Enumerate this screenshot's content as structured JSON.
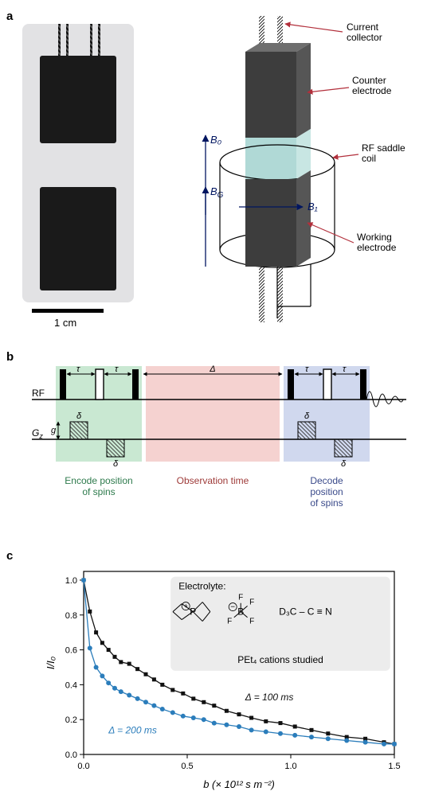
{
  "panel_a": {
    "label": "a",
    "scale_text": "1 cm",
    "callouts": {
      "current_collector": "Current\ncollector",
      "counter_electrode": "Counter\nelectrode",
      "rf_coil": "RF saddle\ncoil",
      "working_electrode": "Working\nelectrode"
    },
    "fields": {
      "B0": "B₀",
      "BG": "B_G",
      "B1": "B₁"
    },
    "colors": {
      "electrode_photo": "#1a1a1a",
      "photo_bg": "#e2e2e4",
      "counter_electrode": "#3f3f3f",
      "working_electrode": "#3f3f3f",
      "electrolyte": "#b0d9d6",
      "arrow_red": "#b22f3b",
      "field_blue": "#001560"
    }
  },
  "panel_b": {
    "label": "b",
    "rf_label": "RF",
    "gz_label": "G_z",
    "g_label": "g",
    "tau": "τ",
    "delta_small": "δ",
    "delta_big": "Δ",
    "phase_labels": {
      "encode": "Encode position\nof spins",
      "observe": "Observation time",
      "decode": "Decode\nposition\nof spins"
    },
    "colors": {
      "encode_bg": "#c9e8d2",
      "observe_bg": "#f5d2d0",
      "decode_bg": "#d0d8ee",
      "encode_text": "#2d7a4c",
      "observe_text": "#9e3a38",
      "decode_text": "#3a4a8a"
    }
  },
  "panel_c": {
    "label": "c",
    "type": "scatter+line",
    "x_label": "b (× 10¹² s m⁻²)",
    "y_label": "I/I₀",
    "xlim": [
      0,
      1.5
    ],
    "ylim": [
      0,
      1.05
    ],
    "xtick_step": 0.5,
    "ytick_step": 0.2,
    "x_ticks": [
      "0.0",
      "0.5",
      "1.0",
      "1.5"
    ],
    "y_ticks": [
      "0.0",
      "0.2",
      "0.4",
      "0.6",
      "0.8",
      "1.0"
    ],
    "inset": {
      "title": "Electrolyte:",
      "caption": "PEt₄ cations studied",
      "formula_frag": "D₃C – C ≡ N"
    },
    "legends": {
      "black": "Δ = 100 ms",
      "blue": "Δ = 200 ms"
    },
    "colors": {
      "black": "#111111",
      "blue": "#2b7dbb",
      "inset_bg": "#ececec",
      "background": "#ffffff"
    },
    "marker_size": 5,
    "series_black": [
      [
        0.0,
        1.0
      ],
      [
        0.03,
        0.82
      ],
      [
        0.06,
        0.7
      ],
      [
        0.09,
        0.64
      ],
      [
        0.12,
        0.6
      ],
      [
        0.15,
        0.56
      ],
      [
        0.18,
        0.53
      ],
      [
        0.22,
        0.52
      ],
      [
        0.26,
        0.49
      ],
      [
        0.3,
        0.46
      ],
      [
        0.34,
        0.43
      ],
      [
        0.38,
        0.4
      ],
      [
        0.43,
        0.37
      ],
      [
        0.48,
        0.35
      ],
      [
        0.53,
        0.32
      ],
      [
        0.58,
        0.3
      ],
      [
        0.63,
        0.28
      ],
      [
        0.69,
        0.25
      ],
      [
        0.75,
        0.23
      ],
      [
        0.81,
        0.21
      ],
      [
        0.88,
        0.19
      ],
      [
        0.95,
        0.18
      ],
      [
        1.02,
        0.16
      ],
      [
        1.1,
        0.14
      ],
      [
        1.18,
        0.12
      ],
      [
        1.27,
        0.1
      ],
      [
        1.36,
        0.09
      ],
      [
        1.45,
        0.07
      ],
      [
        1.5,
        0.06
      ]
    ],
    "series_blue": [
      [
        0.0,
        1.0
      ],
      [
        0.03,
        0.61
      ],
      [
        0.06,
        0.5
      ],
      [
        0.09,
        0.45
      ],
      [
        0.12,
        0.41
      ],
      [
        0.15,
        0.38
      ],
      [
        0.18,
        0.36
      ],
      [
        0.22,
        0.34
      ],
      [
        0.26,
        0.32
      ],
      [
        0.3,
        0.3
      ],
      [
        0.34,
        0.28
      ],
      [
        0.38,
        0.26
      ],
      [
        0.43,
        0.24
      ],
      [
        0.48,
        0.22
      ],
      [
        0.53,
        0.21
      ],
      [
        0.58,
        0.2
      ],
      [
        0.63,
        0.18
      ],
      [
        0.69,
        0.17
      ],
      [
        0.75,
        0.16
      ],
      [
        0.81,
        0.14
      ],
      [
        0.88,
        0.13
      ],
      [
        0.95,
        0.12
      ],
      [
        1.02,
        0.11
      ],
      [
        1.1,
        0.1
      ],
      [
        1.18,
        0.09
      ],
      [
        1.27,
        0.08
      ],
      [
        1.36,
        0.07
      ],
      [
        1.45,
        0.06
      ],
      [
        1.5,
        0.06
      ]
    ]
  }
}
